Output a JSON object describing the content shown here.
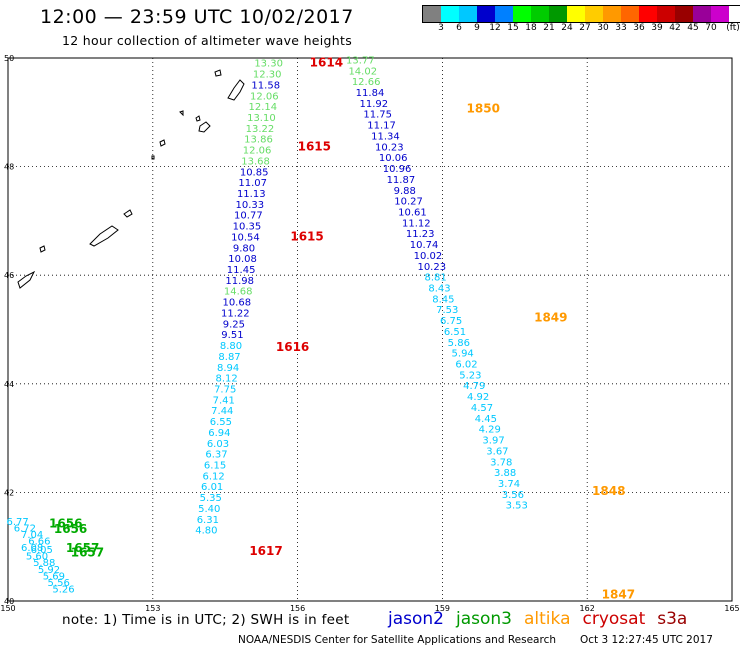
{
  "header": {
    "title": "12:00 — 23:59 UTC 10/02/2017",
    "subtitle": "12 hour collection of altimeter wave heights"
  },
  "color_scale": {
    "unit": "(ft)",
    "labels": [
      "3",
      "6",
      "9",
      "12",
      "15",
      "18",
      "21",
      "24",
      "27",
      "30",
      "33",
      "36",
      "39",
      "42",
      "45",
      "70"
    ],
    "colors": [
      "#808080",
      "#00ffff",
      "#00c8ff",
      "#0000cc",
      "#0080ff",
      "#00ff00",
      "#00cc00",
      "#009900",
      "#ffff00",
      "#ffcc00",
      "#ff9900",
      "#ff6600",
      "#ff0000",
      "#cc0000",
      "#990000",
      "#990099",
      "#cc00cc",
      "#ffffff"
    ]
  },
  "map_data": {
    "lon_ticks": [
      150,
      153,
      156,
      159,
      162,
      165
    ],
    "lat_ticks": [
      40,
      42,
      44,
      46,
      48,
      50
    ],
    "lon_range": [
      150,
      165
    ],
    "lat_range": [
      40,
      50
    ],
    "passes": [
      {
        "label": "1614",
        "color": "#dd0000",
        "lon": 156.25,
        "lat": 49.84
      },
      {
        "label": "1615",
        "color": "#dd0000",
        "lon": 156.0,
        "lat": 48.3
      },
      {
        "label": "1615",
        "color": "#dd0000",
        "lon": 155.85,
        "lat": 46.64
      },
      {
        "label": "1616",
        "color": "#dd0000",
        "lon": 155.55,
        "lat": 44.6
      },
      {
        "label": "1617",
        "color": "#dd0000",
        "lon": 155.0,
        "lat": 40.85
      },
      {
        "label": "1850",
        "color": "#ff9900",
        "lon": 159.5,
        "lat": 49.0
      },
      {
        "label": "1849",
        "color": "#ff9900",
        "lon": 160.9,
        "lat": 45.15
      },
      {
        "label": "1848",
        "color": "#ff9900",
        "lon": 162.1,
        "lat": 41.95
      },
      {
        "label": "1847",
        "color": "#ff9900",
        "lon": 162.3,
        "lat": 40.05
      },
      {
        "label": "1656",
        "color": "#00aa00",
        "lon": 150.85,
        "lat": 41.35
      },
      {
        "label": "1656",
        "color": "#00aa00",
        "lon": 150.95,
        "lat": 41.25
      },
      {
        "label": "1657",
        "color": "#00aa00",
        "lon": 151.2,
        "lat": 40.9
      },
      {
        "label": "1657",
        "color": "#00aa00",
        "lon": 151.3,
        "lat": 40.82
      }
    ],
    "track_a": [
      {
        "v": "13.30",
        "lon": 155.4,
        "lat": 49.84,
        "c": "#66dd66"
      },
      {
        "v": "12.30",
        "lon": 155.37,
        "lat": 49.64,
        "c": "#66dd66"
      },
      {
        "v": "11.58",
        "lon": 155.34,
        "lat": 49.44,
        "c": "#0000cc"
      },
      {
        "v": "12.06",
        "lon": 155.31,
        "lat": 49.24,
        "c": "#66dd66"
      },
      {
        "v": "12.14",
        "lon": 155.28,
        "lat": 49.04,
        "c": "#66dd66"
      },
      {
        "v": "13.10",
        "lon": 155.25,
        "lat": 48.84,
        "c": "#66dd66"
      },
      {
        "v": "13.22",
        "lon": 155.22,
        "lat": 48.64,
        "c": "#66dd66"
      },
      {
        "v": "13.86",
        "lon": 155.19,
        "lat": 48.44,
        "c": "#66dd66"
      },
      {
        "v": "12.06",
        "lon": 155.16,
        "lat": 48.24,
        "c": "#66dd66"
      },
      {
        "v": "13.68",
        "lon": 155.13,
        "lat": 48.04,
        "c": "#66dd66"
      },
      {
        "v": "10.85",
        "lon": 155.1,
        "lat": 47.84,
        "c": "#0000cc"
      },
      {
        "v": "11.07",
        "lon": 155.07,
        "lat": 47.64,
        "c": "#0000cc"
      },
      {
        "v": "11.13",
        "lon": 155.04,
        "lat": 47.44,
        "c": "#0000cc"
      },
      {
        "v": "10.33",
        "lon": 155.01,
        "lat": 47.24,
        "c": "#0000cc"
      },
      {
        "v": "10.77",
        "lon": 154.98,
        "lat": 47.04,
        "c": "#0000cc"
      },
      {
        "v": "10.35",
        "lon": 154.95,
        "lat": 46.84,
        "c": "#0000cc"
      },
      {
        "v": "10.54",
        "lon": 154.92,
        "lat": 46.64,
        "c": "#0000cc"
      },
      {
        "v": "9.80",
        "lon": 154.89,
        "lat": 46.44,
        "c": "#0000cc"
      },
      {
        "v": "10.08",
        "lon": 154.86,
        "lat": 46.24,
        "c": "#0000cc"
      },
      {
        "v": "11.45",
        "lon": 154.83,
        "lat": 46.04,
        "c": "#0000cc"
      },
      {
        "v": "11.98",
        "lon": 154.8,
        "lat": 45.84,
        "c": "#0000cc"
      },
      {
        "v": "14.68",
        "lon": 154.77,
        "lat": 45.64,
        "c": "#66dd66"
      },
      {
        "v": "10.68",
        "lon": 154.74,
        "lat": 45.44,
        "c": "#0000cc"
      },
      {
        "v": "11.22",
        "lon": 154.71,
        "lat": 45.24,
        "c": "#0000cc"
      },
      {
        "v": "9.25",
        "lon": 154.68,
        "lat": 45.04,
        "c": "#0000cc"
      },
      {
        "v": "9.51",
        "lon": 154.65,
        "lat": 44.84,
        "c": "#0000cc"
      },
      {
        "v": "8.80",
        "lon": 154.62,
        "lat": 44.64,
        "c": "#00c8ff"
      },
      {
        "v": "8.87",
        "lon": 154.59,
        "lat": 44.44,
        "c": "#00c8ff"
      },
      {
        "v": "8.94",
        "lon": 154.56,
        "lat": 44.24,
        "c": "#00c8ff"
      },
      {
        "v": "8.12",
        "lon": 154.53,
        "lat": 44.04,
        "c": "#00c8ff"
      },
      {
        "v": "7.75",
        "lon": 154.5,
        "lat": 43.84,
        "c": "#00c8ff"
      },
      {
        "v": "7.41",
        "lon": 154.47,
        "lat": 43.64,
        "c": "#00c8ff"
      },
      {
        "v": "7.44",
        "lon": 154.44,
        "lat": 43.44,
        "c": "#00c8ff"
      },
      {
        "v": "6.55",
        "lon": 154.41,
        "lat": 43.24,
        "c": "#00c8ff"
      },
      {
        "v": "6.94",
        "lon": 154.38,
        "lat": 43.04,
        "c": "#00c8ff"
      },
      {
        "v": "6.03",
        "lon": 154.35,
        "lat": 42.84,
        "c": "#00c8ff"
      },
      {
        "v": "6.37",
        "lon": 154.32,
        "lat": 42.64,
        "c": "#00c8ff"
      },
      {
        "v": "6.15",
        "lon": 154.29,
        "lat": 42.44,
        "c": "#00c8ff"
      },
      {
        "v": "6.12",
        "lon": 154.26,
        "lat": 42.24,
        "c": "#00c8ff"
      },
      {
        "v": "6.01",
        "lon": 154.23,
        "lat": 42.04,
        "c": "#00c8ff"
      },
      {
        "v": "5.35",
        "lon": 154.2,
        "lat": 41.84,
        "c": "#00c8ff"
      },
      {
        "v": "5.40",
        "lon": 154.17,
        "lat": 41.64,
        "c": "#00c8ff"
      },
      {
        "v": "6.31",
        "lon": 154.14,
        "lat": 41.44,
        "c": "#00c8ff"
      },
      {
        "v": "4.80",
        "lon": 154.11,
        "lat": 41.24,
        "c": "#00c8ff"
      }
    ],
    "track_b": [
      {
        "v": "13.77",
        "lon": 157.3,
        "lat": 49.9,
        "c": "#66dd66"
      },
      {
        "v": "14.02",
        "lon": 157.35,
        "lat": 49.7,
        "c": "#66dd66"
      },
      {
        "v": "12.66",
        "lon": 157.42,
        "lat": 49.5,
        "c": "#66dd66"
      },
      {
        "v": "11.84",
        "lon": 157.5,
        "lat": 49.3,
        "c": "#0000cc"
      },
      {
        "v": "11.92",
        "lon": 157.58,
        "lat": 49.1,
        "c": "#0000cc"
      },
      {
        "v": "11.75",
        "lon": 157.66,
        "lat": 48.9,
        "c": "#0000cc"
      },
      {
        "v": "11.17",
        "lon": 157.74,
        "lat": 48.7,
        "c": "#0000cc"
      },
      {
        "v": "11.34",
        "lon": 157.82,
        "lat": 48.5,
        "c": "#0000cc"
      },
      {
        "v": "10.23",
        "lon": 157.9,
        "lat": 48.3,
        "c": "#0000cc"
      },
      {
        "v": "10.06",
        "lon": 157.98,
        "lat": 48.1,
        "c": "#0000cc"
      },
      {
        "v": "10.96",
        "lon": 158.06,
        "lat": 47.9,
        "c": "#0000cc"
      },
      {
        "v": "11.87",
        "lon": 158.14,
        "lat": 47.7,
        "c": "#0000cc"
      },
      {
        "v": "9.88",
        "lon": 158.22,
        "lat": 47.5,
        "c": "#0000cc"
      },
      {
        "v": "10.27",
        "lon": 158.3,
        "lat": 47.3,
        "c": "#0000cc"
      },
      {
        "v": "10.61",
        "lon": 158.38,
        "lat": 47.1,
        "c": "#0000cc"
      },
      {
        "v": "11.12",
        "lon": 158.46,
        "lat": 46.9,
        "c": "#0000cc"
      },
      {
        "v": "11.23",
        "lon": 158.54,
        "lat": 46.7,
        "c": "#0000cc"
      },
      {
        "v": "10.74",
        "lon": 158.62,
        "lat": 46.5,
        "c": "#0000cc"
      },
      {
        "v": "10.02",
        "lon": 158.7,
        "lat": 46.3,
        "c": "#0000cc"
      },
      {
        "v": "10.23",
        "lon": 158.78,
        "lat": 46.1,
        "c": "#0000cc"
      },
      {
        "v": "8.81",
        "lon": 158.86,
        "lat": 45.9,
        "c": "#00c8ff"
      },
      {
        "v": "8.43",
        "lon": 158.94,
        "lat": 45.7,
        "c": "#00c8ff"
      },
      {
        "v": "8.45",
        "lon": 159.02,
        "lat": 45.5,
        "c": "#00c8ff"
      },
      {
        "v": "7.53",
        "lon": 159.1,
        "lat": 45.3,
        "c": "#00c8ff"
      },
      {
        "v": "6.75",
        "lon": 159.18,
        "lat": 45.1,
        "c": "#00c8ff"
      },
      {
        "v": "6.51",
        "lon": 159.26,
        "lat": 44.9,
        "c": "#00c8ff"
      },
      {
        "v": "5.86",
        "lon": 159.34,
        "lat": 44.7,
        "c": "#00c8ff"
      },
      {
        "v": "5.94",
        "lon": 159.42,
        "lat": 44.5,
        "c": "#00c8ff"
      },
      {
        "v": "6.02",
        "lon": 159.5,
        "lat": 44.3,
        "c": "#00c8ff"
      },
      {
        "v": "5.23",
        "lon": 159.58,
        "lat": 44.1,
        "c": "#00c8ff"
      },
      {
        "v": "4.79",
        "lon": 159.66,
        "lat": 43.9,
        "c": "#00c8ff"
      },
      {
        "v": "4.92",
        "lon": 159.74,
        "lat": 43.7,
        "c": "#00c8ff"
      },
      {
        "v": "4.57",
        "lon": 159.82,
        "lat": 43.5,
        "c": "#00c8ff"
      },
      {
        "v": "4.45",
        "lon": 159.9,
        "lat": 43.3,
        "c": "#00c8ff"
      },
      {
        "v": "4.29",
        "lon": 159.98,
        "lat": 43.1,
        "c": "#00c8ff"
      },
      {
        "v": "3.97",
        "lon": 160.06,
        "lat": 42.9,
        "c": "#00c8ff"
      },
      {
        "v": "3.67",
        "lon": 160.14,
        "lat": 42.7,
        "c": "#00c8ff"
      },
      {
        "v": "3.78",
        "lon": 160.22,
        "lat": 42.5,
        "c": "#00c8ff"
      },
      {
        "v": "3.88",
        "lon": 160.3,
        "lat": 42.3,
        "c": "#00c8ff"
      },
      {
        "v": "3.74",
        "lon": 160.38,
        "lat": 42.1,
        "c": "#00c8ff"
      },
      {
        "v": "3.56",
        "lon": 160.46,
        "lat": 41.9,
        "c": "#00c8ff"
      },
      {
        "v": "3.53",
        "lon": 160.54,
        "lat": 41.7,
        "c": "#00c8ff"
      }
    ],
    "track_c": [
      {
        "v": "6.77",
        "lon": 150.2,
        "lat": 41.4,
        "c": "#00c8ff"
      },
      {
        "v": "6.72",
        "lon": 150.35,
        "lat": 41.28,
        "c": "#00c8ff"
      },
      {
        "v": "7.04",
        "lon": 150.5,
        "lat": 41.16,
        "c": "#00c8ff"
      },
      {
        "v": "6.66",
        "lon": 150.65,
        "lat": 41.04,
        "c": "#00c8ff"
      },
      {
        "v": "6.08",
        "lon": 150.5,
        "lat": 40.92,
        "c": "#00c8ff"
      },
      {
        "v": "6.05",
        "lon": 150.7,
        "lat": 40.88,
        "c": "#00c8ff"
      },
      {
        "v": "5.60",
        "lon": 150.6,
        "lat": 40.76,
        "c": "#00c8ff"
      },
      {
        "v": "5.88",
        "lon": 150.75,
        "lat": 40.64,
        "c": "#00c8ff"
      },
      {
        "v": "5.92",
        "lon": 150.85,
        "lat": 40.52,
        "c": "#00c8ff"
      },
      {
        "v": "5.69",
        "lon": 150.95,
        "lat": 40.4,
        "c": "#00c8ff"
      },
      {
        "v": "5.56",
        "lon": 151.05,
        "lat": 40.28,
        "c": "#00c8ff"
      },
      {
        "v": "5.26",
        "lon": 151.15,
        "lat": 40.16,
        "c": "#00c8ff"
      }
    ]
  },
  "footer": {
    "note": "note:  1) Time is in UTC;  2) SWH is in feet",
    "legend": [
      {
        "name": "jason2",
        "color": "#0000cc"
      },
      {
        "name": "jason3",
        "color": "#009900"
      },
      {
        "name": "altika",
        "color": "#ff9900"
      },
      {
        "name": "cryosat",
        "color": "#cc0000"
      },
      {
        "name": "s3a",
        "color": "#990000"
      }
    ],
    "credit": "NOAA/NESDIS Center for Satellite Applications and Research",
    "timestamp": "Oct  3 12:27:45 UTC 2017"
  }
}
